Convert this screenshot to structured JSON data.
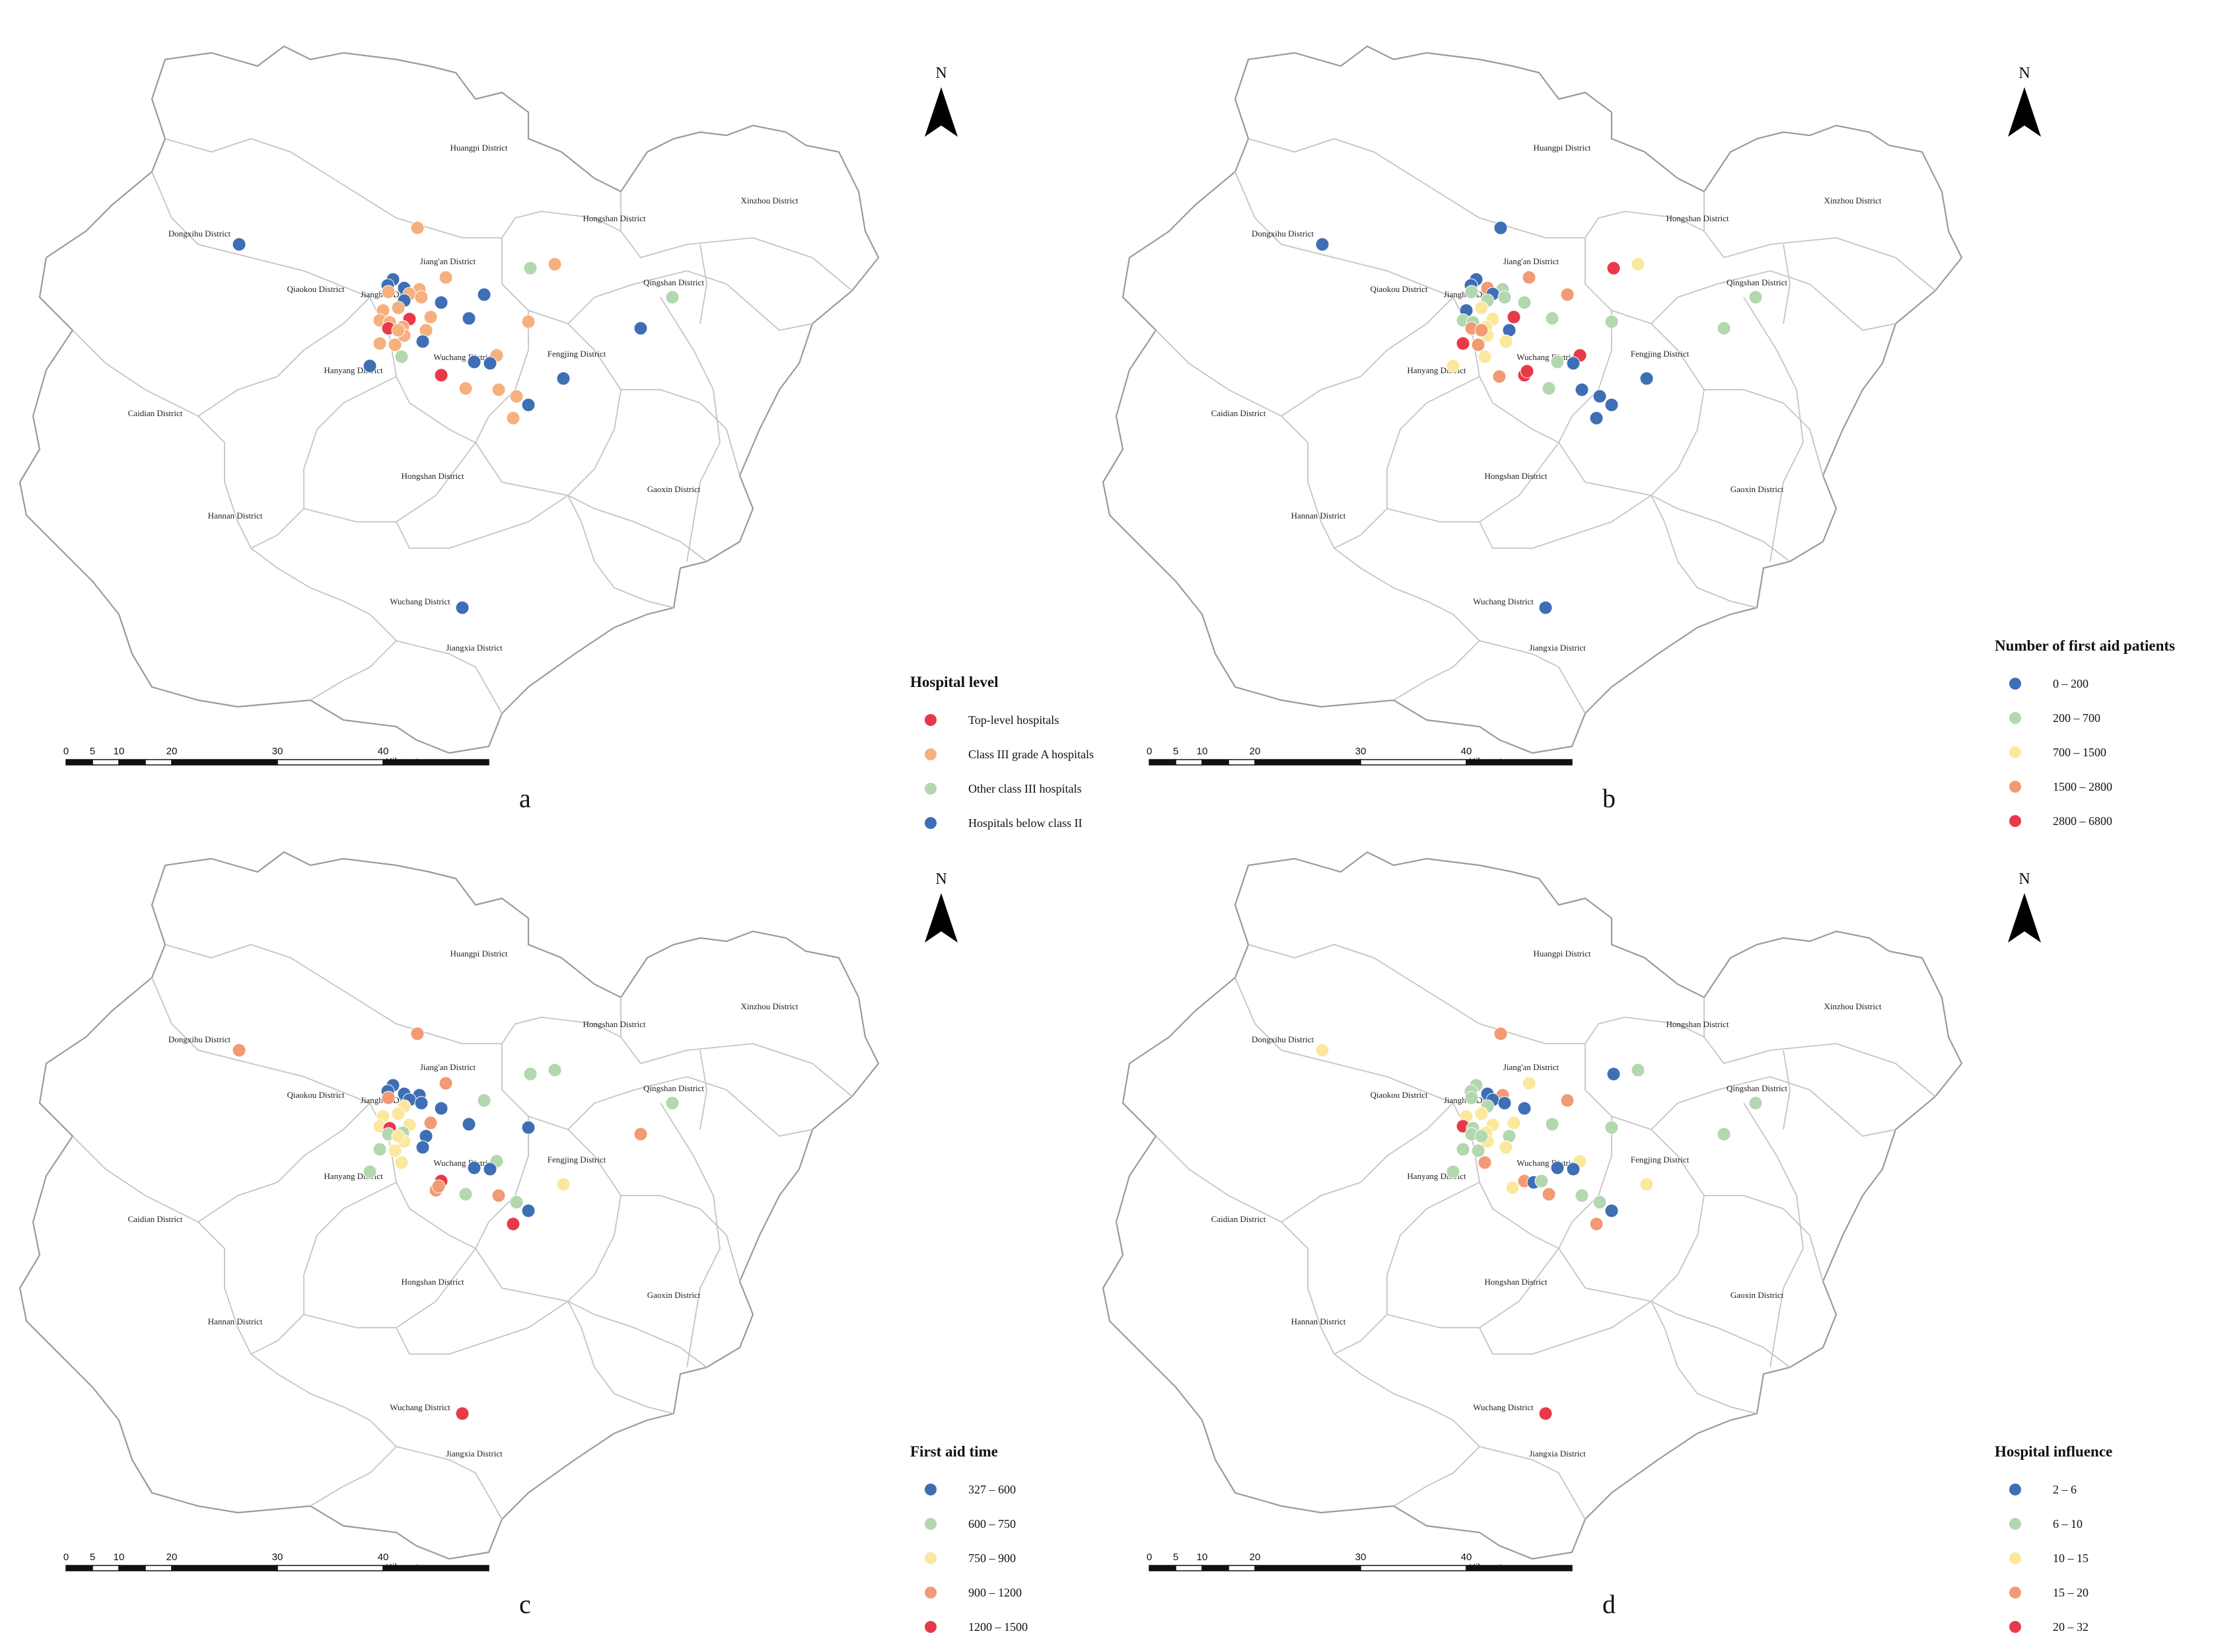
{
  "panels": [
    {
      "letter": "a",
      "legend_title": "Hospital level",
      "legend": [
        {
          "label": "Top-level hospitals",
          "color": "#e8394a"
        },
        {
          "label": "Class III grade A hospitals",
          "color": "#f6b07d"
        },
        {
          "label": "Other class III hospitals",
          "color": "#b3d7af"
        },
        {
          "label": "Hospitals below class II",
          "color": "#3e6fb4"
        }
      ],
      "legend_placement": "bottom-right"
    },
    {
      "letter": "b",
      "legend_title": "Number of first aid patients",
      "legend": [
        {
          "label": "0 – 200",
          "color": "#3e6fb4"
        },
        {
          "label": "200 – 700",
          "color": "#b3d7af"
        },
        {
          "label": "700 – 1500",
          "color": "#fbe89c"
        },
        {
          "label": "1500 – 2800",
          "color": "#f29a74"
        },
        {
          "label": "2800 – 6800",
          "color": "#e8394a"
        }
      ],
      "legend_placement": "bottom-right"
    },
    {
      "letter": "c",
      "legend_title": "First aid time",
      "legend": [
        {
          "label": "327 – 600",
          "color": "#3e6fb4"
        },
        {
          "label": "600 – 750",
          "color": "#b3d7af"
        },
        {
          "label": "750 – 900",
          "color": "#fbe89c"
        },
        {
          "label": "900 – 1200",
          "color": "#f29a74"
        },
        {
          "label": "1200 – 1500",
          "color": "#e8394a"
        }
      ],
      "legend_placement": "bottom-right"
    },
    {
      "letter": "d",
      "legend_title": "Hospital influence",
      "legend": [
        {
          "label": "2 – 6",
          "color": "#3e6fb4"
        },
        {
          "label": "6 – 10",
          "color": "#b3d7af"
        },
        {
          "label": "10 – 15",
          "color": "#fbe89c"
        },
        {
          "label": "15 – 20",
          "color": "#f29a74"
        },
        {
          "label": "20 – 32",
          "color": "#e8394a"
        }
      ],
      "legend_placement": "bottom-right"
    }
  ],
  "north_label": "N",
  "districts": [
    "Huangpi District",
    "Xinzhou District",
    "Dongxihu District",
    "Hongshan District",
    "Jiang'an District",
    "Qingshan District",
    "Qiaokou District",
    "Jianghan District",
    "Hanyang District",
    "Wuchang District",
    "Fengjing District",
    "Caidian District",
    "Hongshan District",
    "Gaoxin District",
    "Hannan District",
    "Wuchang District",
    "Jiangxia District"
  ],
  "scale": {
    "ticks": [
      "0",
      "5",
      "10",
      "20",
      "30",
      "40"
    ],
    "unit": "Kilometers"
  }
}
